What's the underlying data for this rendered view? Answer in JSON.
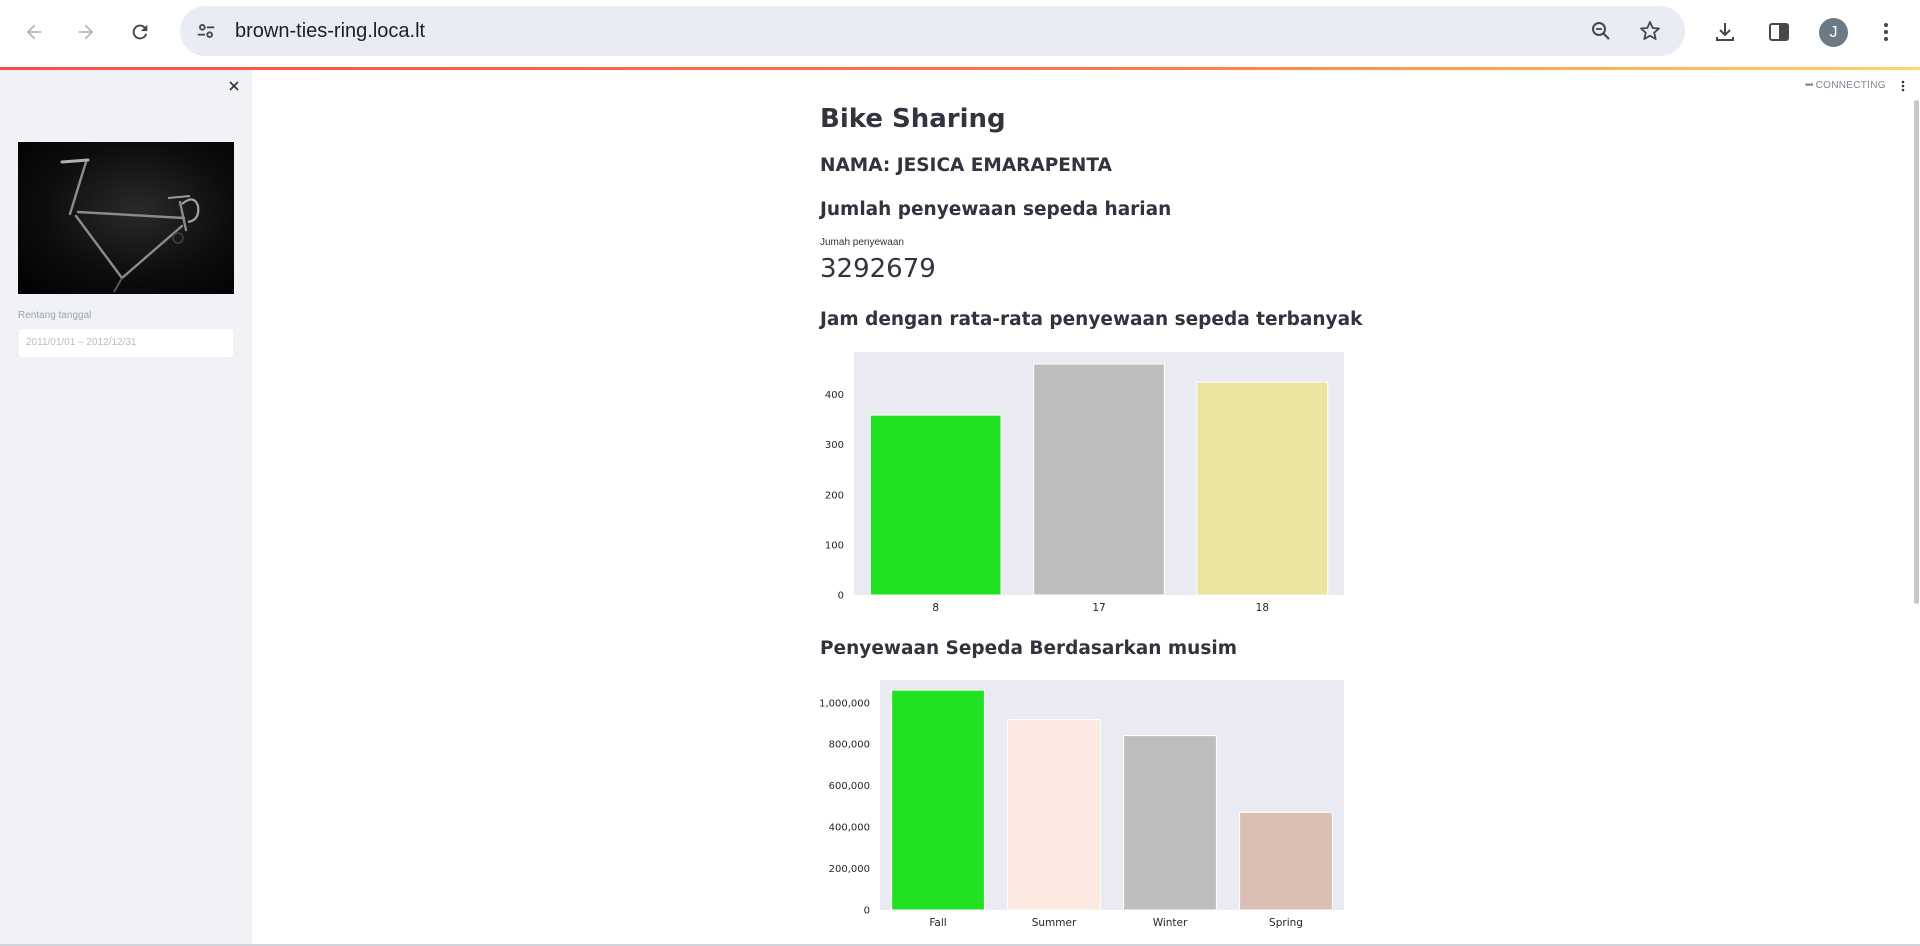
{
  "browser": {
    "url": "brown-ties-ring.loca.lt",
    "avatar_initial": "J",
    "icons": [
      "back-arrow-icon",
      "forward-arrow-icon",
      "reload-icon",
      "site-settings-icon",
      "zoom-icon",
      "bookmark-star-icon",
      "download-icon",
      "side-panel-icon",
      "kebab-menu-icon"
    ]
  },
  "sidebar": {
    "date_label": "Rentang tanggal",
    "date_value": "2011/01/01 – 2012/12/31"
  },
  "header": {
    "status": "CONNECTING"
  },
  "page": {
    "title": "Bike Sharing",
    "name_heading": "NAMA: JESICA EMARAPENTA",
    "daily_heading": "Jumlah penyewaan sepeda harian",
    "metric_label": "Jumah penyewaan",
    "metric_value": "3292679",
    "hour_heading": "Jam dengan rata-rata penyewaan sepeda terbanyak",
    "season_heading": "Penyewaan Sepeda Berdasarkan musim"
  },
  "chart_data": [
    {
      "type": "bar",
      "categories": [
        "8",
        "17",
        "18"
      ],
      "values": [
        359,
        461,
        425
      ],
      "colors": [
        "#22e022",
        "#bebebe",
        "#e9e59e"
      ],
      "ylim": [
        0,
        485
      ],
      "yticks": [
        0,
        100,
        200,
        300,
        400
      ],
      "ytick_labels": [
        "0",
        "100",
        "200",
        "300",
        "400"
      ],
      "background": "#eaeaf2"
    },
    {
      "type": "bar",
      "categories": [
        "Fall",
        "Summer",
        "Winter",
        "Spring"
      ],
      "values": [
        1061129,
        918589,
        841613,
        471348
      ],
      "colors": [
        "#22e022",
        "#fbe9e2",
        "#bebebe",
        "#dbbfb5"
      ],
      "ylim": [
        0,
        1110000
      ],
      "yticks": [
        0,
        200000,
        400000,
        600000,
        800000,
        1000000
      ],
      "ytick_labels": [
        "0",
        "200,000",
        "400,000",
        "600,000",
        "800,000",
        "1,000,000"
      ],
      "background": "#eaeaf2"
    }
  ]
}
